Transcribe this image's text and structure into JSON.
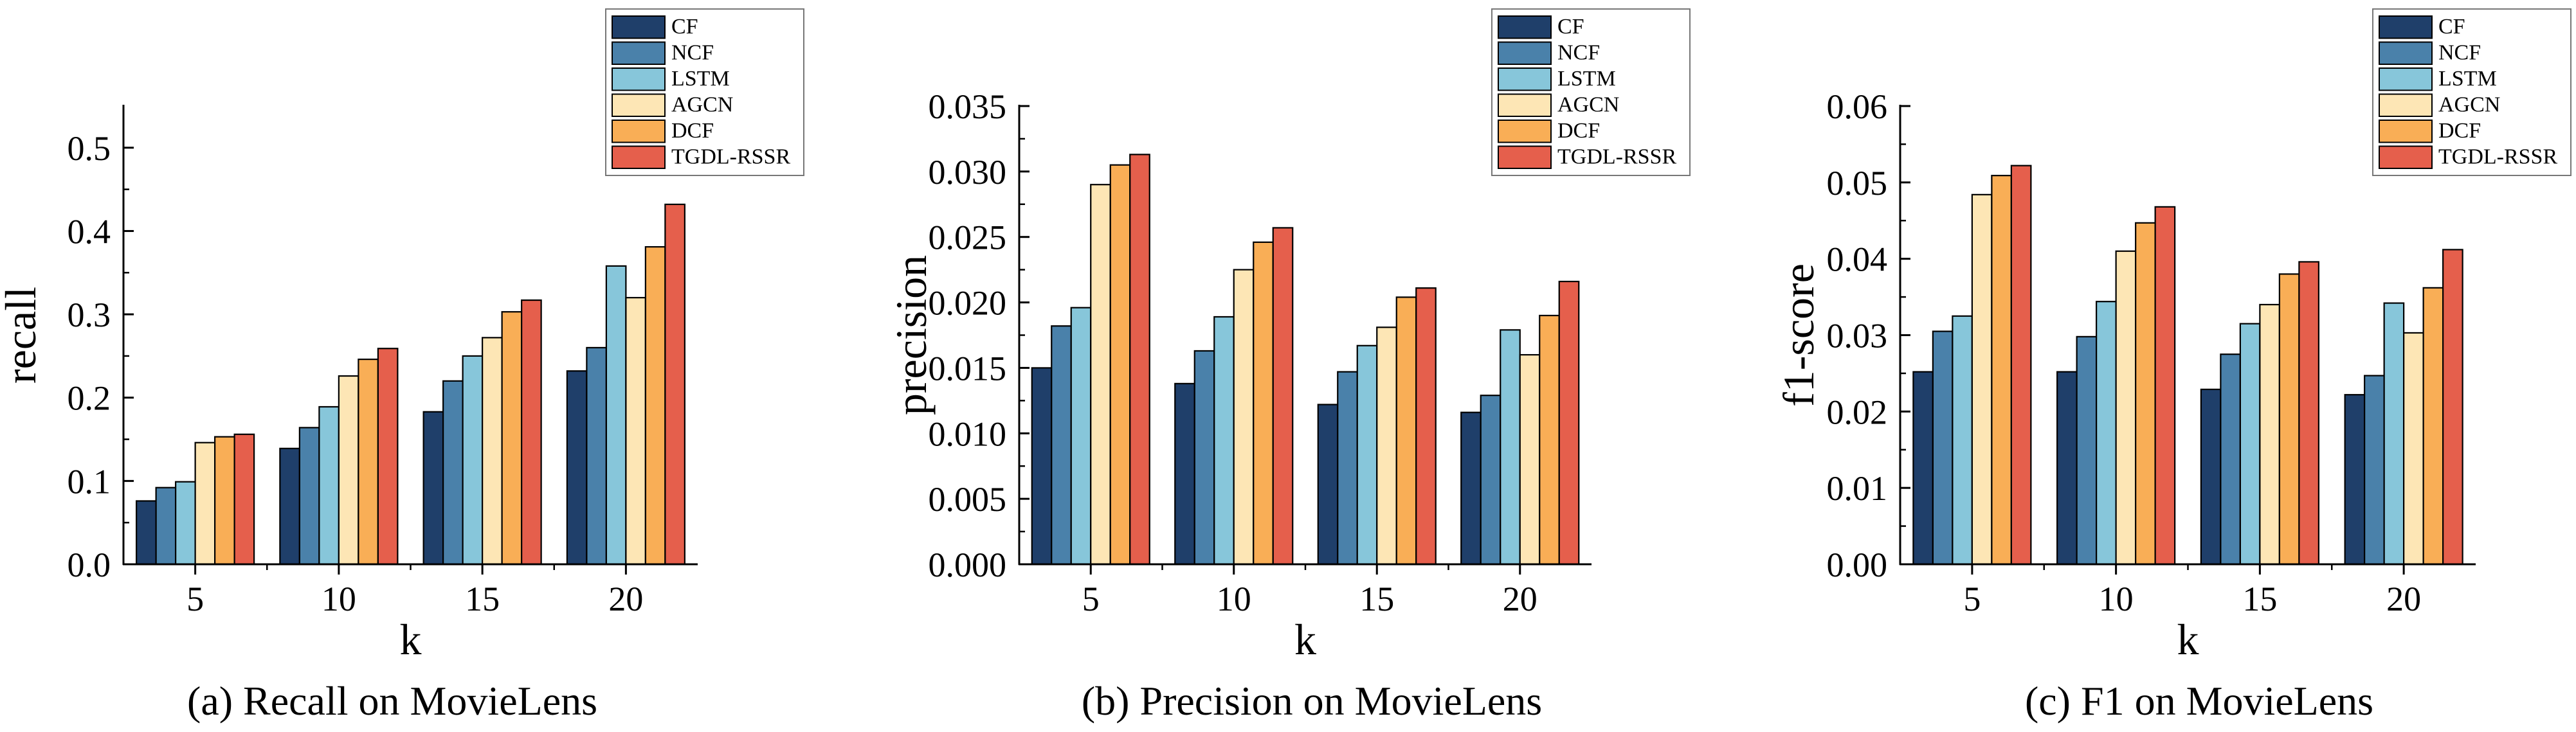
{
  "colors": {
    "CF": "#1f3f6a",
    "NCF": "#4a81aa",
    "LSTM": "#87c6da",
    "AGCN": "#fde6b5",
    "DCF": "#f9ae56",
    "TGDL-RSSR": "#e55f4c"
  },
  "chart_data": [
    {
      "type": "bar",
      "caption": "(a)  Recall on MovieLens",
      "xlabel": "k",
      "ylabel": "recall",
      "categories": [
        "5",
        "10",
        "15",
        "20"
      ],
      "ylim": [
        0,
        0.55
      ],
      "yticks": [
        "0.0",
        "0.1",
        "0.2",
        "0.3",
        "0.4",
        "0.5"
      ],
      "legend_position": "top-right",
      "series": [
        {
          "name": "CF",
          "values": [
            0.076,
            0.139,
            0.183,
            0.232
          ]
        },
        {
          "name": "NCF",
          "values": [
            0.092,
            0.164,
            0.22,
            0.26
          ]
        },
        {
          "name": "LSTM",
          "values": [
            0.099,
            0.189,
            0.25,
            0.358
          ]
        },
        {
          "name": "AGCN",
          "values": [
            0.146,
            0.226,
            0.272,
            0.32
          ]
        },
        {
          "name": "DCF",
          "values": [
            0.153,
            0.246,
            0.303,
            0.381
          ]
        },
        {
          "name": "TGDL-RSSR",
          "values": [
            0.156,
            0.259,
            0.317,
            0.432
          ]
        }
      ]
    },
    {
      "type": "bar",
      "caption": "(b)  Precision on MovieLens",
      "xlabel": "k",
      "ylabel": "precision",
      "categories": [
        "5",
        "10",
        "15",
        "20"
      ],
      "ylim": [
        0,
        0.035
      ],
      "yticks": [
        "0.000",
        "0.005",
        "0.010",
        "0.015",
        "0.020",
        "0.025",
        "0.030",
        "0.035"
      ],
      "legend_position": "top-right",
      "series": [
        {
          "name": "CF",
          "values": [
            0.015,
            0.0138,
            0.0122,
            0.0116
          ]
        },
        {
          "name": "NCF",
          "values": [
            0.0182,
            0.0163,
            0.0147,
            0.0129
          ]
        },
        {
          "name": "LSTM",
          "values": [
            0.0196,
            0.0189,
            0.0167,
            0.0179
          ]
        },
        {
          "name": "AGCN",
          "values": [
            0.029,
            0.0225,
            0.0181,
            0.016
          ]
        },
        {
          "name": "DCF",
          "values": [
            0.0305,
            0.0246,
            0.0204,
            0.019
          ]
        },
        {
          "name": "TGDL-RSSR",
          "values": [
            0.0313,
            0.0257,
            0.0211,
            0.0216
          ]
        }
      ]
    },
    {
      "type": "bar",
      "caption": "(c)  F1 on MovieLens",
      "xlabel": "k",
      "ylabel": "f1-score",
      "categories": [
        "5",
        "10",
        "15",
        "20"
      ],
      "ylim": [
        0,
        0.06
      ],
      "yticks": [
        "0.00",
        "0.01",
        "0.02",
        "0.03",
        "0.04",
        "0.05",
        "0.06"
      ],
      "legend_position": "top-right",
      "series": [
        {
          "name": "CF",
          "values": [
            0.0252,
            0.0252,
            0.0229,
            0.0222
          ]
        },
        {
          "name": "NCF",
          "values": [
            0.0305,
            0.0298,
            0.0275,
            0.0247
          ]
        },
        {
          "name": "LSTM",
          "values": [
            0.0325,
            0.0344,
            0.0315,
            0.0342
          ]
        },
        {
          "name": "AGCN",
          "values": [
            0.0484,
            0.041,
            0.034,
            0.0303
          ]
        },
        {
          "name": "DCF",
          "values": [
            0.0509,
            0.0447,
            0.038,
            0.0362
          ]
        },
        {
          "name": "TGDL-RSSR",
          "values": [
            0.0522,
            0.0468,
            0.0396,
            0.0412
          ]
        }
      ]
    }
  ]
}
